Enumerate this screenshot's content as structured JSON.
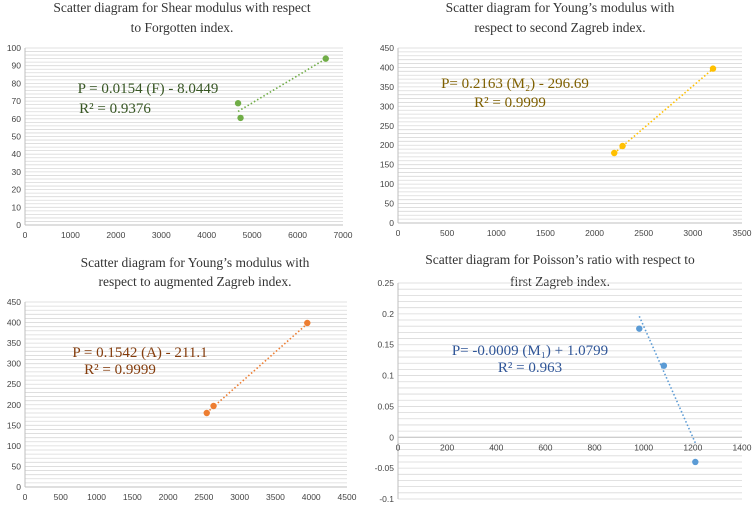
{
  "chart_data": [
    {
      "type": "scatter",
      "title_line1": "Scatter diagram for Shear modulus with respect",
      "title_line2": "to Forgotten index.",
      "color": "#70ad47",
      "text_color": "#375623",
      "xlim": [
        0,
        7000
      ],
      "x_ticks": [
        0,
        1000,
        2000,
        3000,
        4000,
        5000,
        6000,
        7000
      ],
      "ylim": [
        0,
        100
      ],
      "y_ticks": [
        0,
        10,
        20,
        30,
        40,
        50,
        60,
        70,
        80,
        90,
        100
      ],
      "minor_step": 2,
      "x": [
        4690,
        4745,
        6620
      ],
      "y": [
        68.8,
        60.5,
        94.0
      ],
      "trendline": {
        "slope": 0.0154,
        "intercept": -8.0449
      },
      "equation": "P = 0.0154 (F) - 8.0449",
      "r2": "R² = 0.9376"
    },
    {
      "type": "scatter",
      "title_line1": "Scatter diagram for Young’s modulus with",
      "title_line2": "respect to second Zagreb index.",
      "color": "#ffc000",
      "text_color": "#7f6000",
      "xlim": [
        0,
        3500
      ],
      "x_ticks": [
        0,
        500,
        1000,
        1500,
        2000,
        2500,
        3000,
        3500
      ],
      "ylim": [
        0,
        450
      ],
      "y_ticks": [
        0,
        50,
        100,
        150,
        200,
        250,
        300,
        350,
        400,
        450
      ],
      "minor_step": 10,
      "x": [
        2200,
        2285,
        3205
      ],
      "y": [
        180,
        198,
        397
      ],
      "trendline": {
        "slope": 0.2163,
        "intercept": -296.69
      },
      "equation": "P= 0.2163 (M₂) - 296.69",
      "r2": "R² = 0.9999"
    },
    {
      "type": "scatter",
      "title_line1": "Scatter diagram for Young’s modulus with",
      "title_line2": "respect to augmented Zagreb index.",
      "color": "#ed7d31",
      "text_color": "#843c0c",
      "xlim": [
        0,
        4500
      ],
      "x_ticks": [
        0,
        500,
        1000,
        1500,
        2000,
        2500,
        3000,
        3500,
        4000,
        4500
      ],
      "ylim": [
        0,
        450
      ],
      "y_ticks": [
        0,
        50,
        100,
        150,
        200,
        250,
        300,
        350,
        400,
        450
      ],
      "minor_step": 10,
      "x": [
        2540,
        2635,
        3945
      ],
      "y": [
        180,
        197,
        399
      ],
      "trendline": {
        "slope": 0.1542,
        "intercept": -211.1
      },
      "equation": "P = 0.1542 (A) - 211.1",
      "r2": "R² = 0.9999"
    },
    {
      "type": "scatter",
      "title_line1": "Scatter diagram for Poisson’s ratio with respect to",
      "title_line2": "first Zagreb index.",
      "color": "#5b9bd5",
      "text_color": "#2f5597",
      "xlim": [
        0,
        1400
      ],
      "x_ticks": [
        0,
        200,
        400,
        600,
        800,
        1000,
        1200,
        1400
      ],
      "ylim": [
        -0.1,
        0.25
      ],
      "y_ticks": [
        -0.1,
        -0.05,
        0,
        0.05,
        0.1,
        0.15,
        0.2,
        0.25
      ],
      "minor_step": 0.01,
      "x": [
        982,
        1082,
        1210
      ],
      "y": [
        0.176,
        0.116,
        -0.04
      ],
      "trendline": {
        "slope": -0.0009,
        "intercept": 1.0799
      },
      "equation": "P= -0.0009 (M₁) + 1.0799",
      "r2": "R² = 0.963"
    }
  ]
}
